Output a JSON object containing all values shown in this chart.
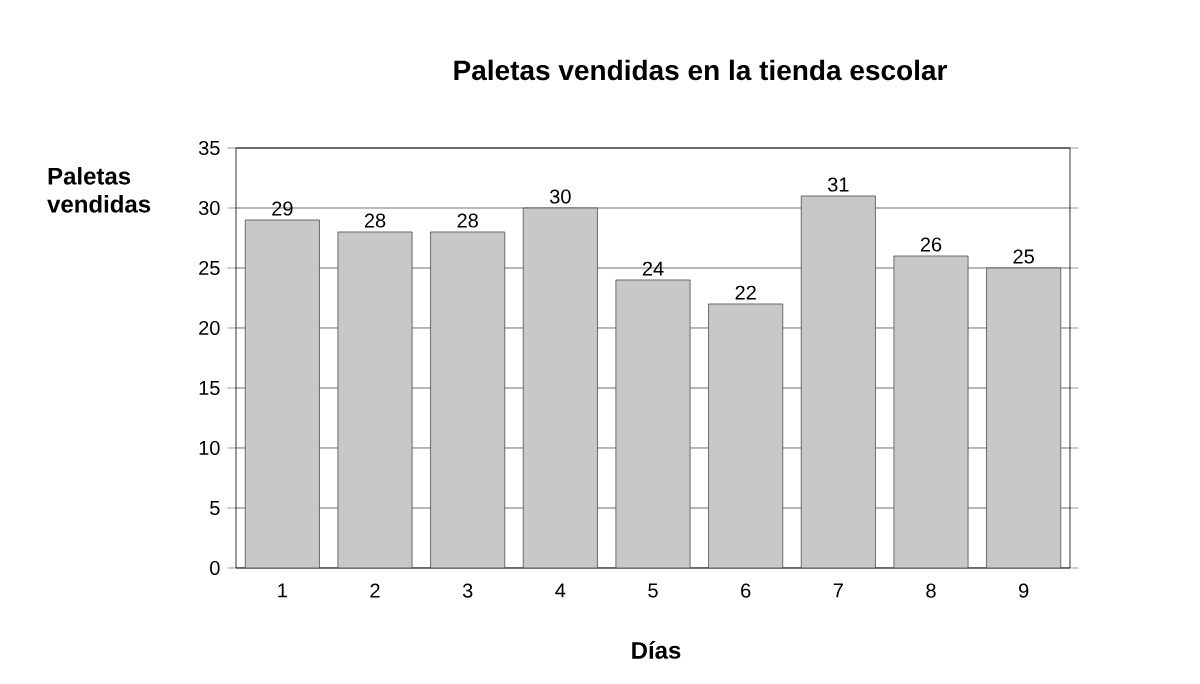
{
  "chart_data": {
    "type": "bar",
    "title": "Paletas vendidas en la tienda escolar",
    "xlabel": "Días",
    "ylabel": "Paletas vendidas",
    "categories": [
      "1",
      "2",
      "3",
      "4",
      "5",
      "6",
      "7",
      "8",
      "9"
    ],
    "values": [
      29,
      28,
      28,
      30,
      24,
      22,
      31,
      26,
      25
    ],
    "color": "#c8c8c8",
    "ylim": [
      0,
      35
    ],
    "yticks": [
      0,
      5,
      10,
      15,
      20,
      25,
      30,
      35
    ],
    "grid": "y",
    "data_labels": true
  }
}
